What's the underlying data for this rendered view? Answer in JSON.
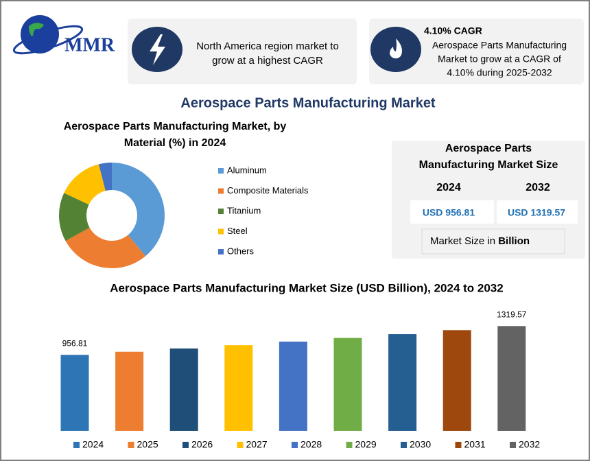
{
  "logo": "MMR",
  "cards": [
    {
      "text_lines": [
        "North America region market to",
        "grow at a highest CAGR"
      ]
    },
    {
      "heading": "4.10% CAGR",
      "text_lines": [
        "Aerospace Parts Manufacturing",
        "Market to grow at a CAGR of",
        "4.10% during 2025-2032"
      ]
    }
  ],
  "main_title": "Aerospace Parts Manufacturing Market",
  "size_panel": {
    "title_lines": [
      "Aerospace Parts",
      "Manufacturing Market Size"
    ],
    "years": [
      "2024",
      "2032"
    ],
    "values": [
      "USD 956.81",
      "USD 1319.57"
    ],
    "unit_prefix": "Market Size in",
    "unit": "Billion"
  },
  "chart_data": [
    {
      "type": "pie",
      "donut": true,
      "title_lines": [
        "Aerospace Parts Manufacturing Market, by",
        "Material (%) in 2024"
      ],
      "categories": [
        "Aluminum",
        "Composite Materials",
        "Titanium",
        "Steel",
        "Others"
      ],
      "values": [
        39,
        28,
        15,
        14,
        4
      ],
      "colors": [
        "#5b9bd5",
        "#ed7d31",
        "#548235",
        "#ffc000",
        "#4472c4"
      ]
    },
    {
      "type": "bar",
      "title": "Aerospace Parts Manufacturing Market Size (USD Billion), 2024 to 2032",
      "categories": [
        "2024",
        "2025",
        "2026",
        "2027",
        "2028",
        "2029",
        "2030",
        "2031",
        "2032"
      ],
      "values": [
        956.81,
        996,
        1037,
        1079,
        1124,
        1170,
        1218,
        1268,
        1319.57
      ],
      "value_labels": [
        "956.81",
        null,
        null,
        null,
        null,
        null,
        null,
        null,
        "1319.57"
      ],
      "colors": [
        "#2e75b6",
        "#ed7d31",
        "#1f4e79",
        "#ffc000",
        "#4472c4",
        "#70ad47",
        "#255e91",
        "#9e480e",
        "#636363"
      ],
      "ylim": [
        0,
        1400
      ]
    }
  ]
}
